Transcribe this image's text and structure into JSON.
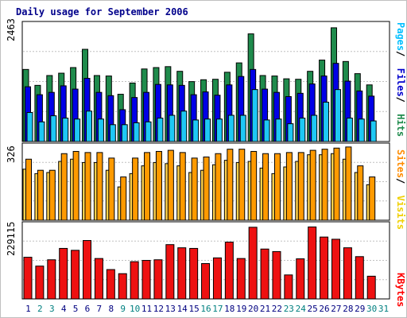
{
  "title": "Daily usage for September 2006",
  "panels": {
    "top": {
      "scale_label": "2463",
      "legend": [
        {
          "text": "Pages",
          "color": "#00bfff"
        },
        {
          "text": " / ",
          "color": "#000000"
        },
        {
          "text": "Files",
          "color": "#0000cd"
        },
        {
          "text": " / ",
          "color": "#000000"
        },
        {
          "text": "Hits",
          "color": "#1f8b4c"
        }
      ]
    },
    "middle": {
      "scale_label": "326",
      "legend": [
        {
          "text": "Sites",
          "color": "#ff8c00"
        },
        {
          "text": " / ",
          "color": "#000000"
        },
        {
          "text": "Visits",
          "color": "#f0d000"
        }
      ]
    },
    "bottom": {
      "scale_label": "229115",
      "legend": [
        {
          "text": "KBytes",
          "color": "#ff0000"
        }
      ]
    }
  },
  "colors": {
    "hits": "#1f8b4c",
    "files": "#0000e6",
    "pages": "#1ec8f5",
    "visits": "#ffd24d",
    "sites": "#ff9a00",
    "kbytes": "#ee1111",
    "weekday_label": "#000080",
    "weekend_label": "#008080",
    "grid": "#c0c0c0"
  },
  "chart_data": [
    {
      "type": "bar",
      "title": "Daily usage for September 2006",
      "categories": [
        "1",
        "2",
        "3",
        "4",
        "5",
        "6",
        "7",
        "8",
        "9",
        "10",
        "11",
        "12",
        "13",
        "14",
        "15",
        "16",
        "17",
        "18",
        "19",
        "20",
        "21",
        "22",
        "23",
        "24",
        "25",
        "26",
        "27",
        "28",
        "29",
        "30",
        "31"
      ],
      "weekend_days": [
        "2",
        "3",
        "9",
        "10",
        "16",
        "17",
        "23",
        "24",
        "30",
        "31"
      ],
      "ylim": [
        0,
        2463
      ],
      "series": [
        {
          "name": "Hits",
          "values": [
            1540,
            1200,
            1410,
            1460,
            1580,
            1970,
            1410,
            1400,
            1010,
            1250,
            1550,
            1580,
            1600,
            1500,
            1280,
            1320,
            1330,
            1480,
            1680,
            2300,
            1410,
            1400,
            1340,
            1330,
            1500,
            1740,
            2430,
            1710,
            1450,
            1210,
            0
          ]
        },
        {
          "name": "Files",
          "values": [
            1170,
            1000,
            1050,
            1190,
            1120,
            1350,
            1050,
            980,
            680,
            940,
            1050,
            1220,
            1210,
            1200,
            1000,
            1060,
            990,
            1210,
            1390,
            1540,
            1120,
            1050,
            960,
            1030,
            1230,
            1400,
            1670,
            1290,
            1080,
            970,
            0
          ]
        },
        {
          "name": "Pages",
          "values": [
            620,
            420,
            550,
            500,
            480,
            650,
            480,
            360,
            360,
            400,
            420,
            500,
            560,
            650,
            460,
            480,
            480,
            560,
            560,
            1110,
            460,
            480,
            380,
            500,
            560,
            840,
            1110,
            500,
            480,
            440,
            0
          ]
        }
      ]
    },
    {
      "type": "bar",
      "categories": [
        "1",
        "2",
        "3",
        "4",
        "5",
        "6",
        "7",
        "8",
        "9",
        "10",
        "11",
        "12",
        "13",
        "14",
        "15",
        "16",
        "17",
        "18",
        "19",
        "20",
        "21",
        "22",
        "23",
        "24",
        "25",
        "26",
        "27",
        "28",
        "29",
        "30",
        "31"
      ],
      "ylim": [
        0,
        326
      ],
      "series": [
        {
          "name": "Visits",
          "values": [
            230,
            210,
            215,
            265,
            275,
            260,
            260,
            225,
            150,
            210,
            245,
            260,
            255,
            245,
            215,
            225,
            250,
            270,
            260,
            265,
            235,
            210,
            240,
            265,
            295,
            295,
            300,
            275,
            215,
            160,
            0
          ]
        },
        {
          "name": "Sites",
          "values": [
            275,
            225,
            225,
            300,
            310,
            305,
            305,
            280,
            195,
            280,
            305,
            310,
            315,
            305,
            280,
            285,
            300,
            320,
            320,
            310,
            300,
            300,
            305,
            305,
            315,
            320,
            325,
            330,
            245,
            195,
            0
          ]
        }
      ]
    },
    {
      "type": "bar",
      "categories": [
        "1",
        "2",
        "3",
        "4",
        "5",
        "6",
        "7",
        "8",
        "9",
        "10",
        "11",
        "12",
        "13",
        "14",
        "15",
        "16",
        "17",
        "18",
        "19",
        "20",
        "21",
        "22",
        "23",
        "24",
        "25",
        "26",
        "27",
        "28",
        "29",
        "30",
        "31"
      ],
      "ylim": [
        0,
        229115
      ],
      "series": [
        {
          "name": "KBytes",
          "values": [
            132000,
            104000,
            124000,
            160000,
            154000,
            185000,
            128000,
            93000,
            80000,
            118000,
            122000,
            124000,
            172000,
            162000,
            160000,
            112000,
            130000,
            180000,
            128000,
            227000,
            158000,
            150000,
            76000,
            127000,
            228000,
            196000,
            189000,
            162000,
            134000,
            72000,
            0
          ]
        }
      ]
    }
  ]
}
